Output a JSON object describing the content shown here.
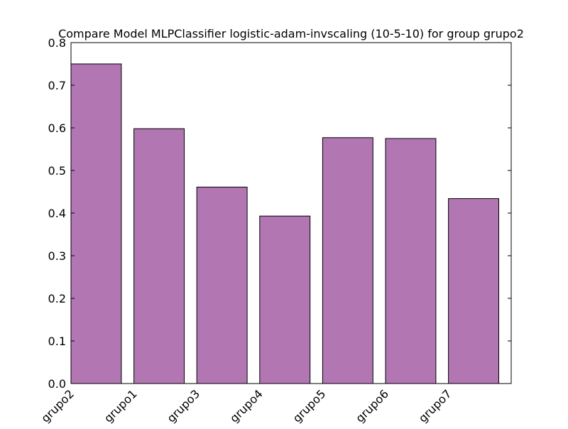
{
  "chart_data": {
    "type": "bar",
    "title": "Compare Model MLPClassifier logistic-adam-invscaling (10-5-10) for group grupo2",
    "xlabel": "",
    "ylabel": "",
    "categories": [
      "grupo2",
      "grupo1",
      "grupo3",
      "grupo4",
      "grupo5",
      "grupo6",
      "grupo7"
    ],
    "values": [
      0.75,
      0.598,
      0.461,
      0.393,
      0.577,
      0.575,
      0.434
    ],
    "ylim": [
      0.0,
      0.8
    ],
    "yticks": [
      "0.0",
      "0.1",
      "0.2",
      "0.3",
      "0.4",
      "0.5",
      "0.6",
      "0.7",
      "0.8"
    ],
    "bar_color": "#b276b2",
    "edge_color": "#000000",
    "grid": false,
    "legend": "none"
  }
}
